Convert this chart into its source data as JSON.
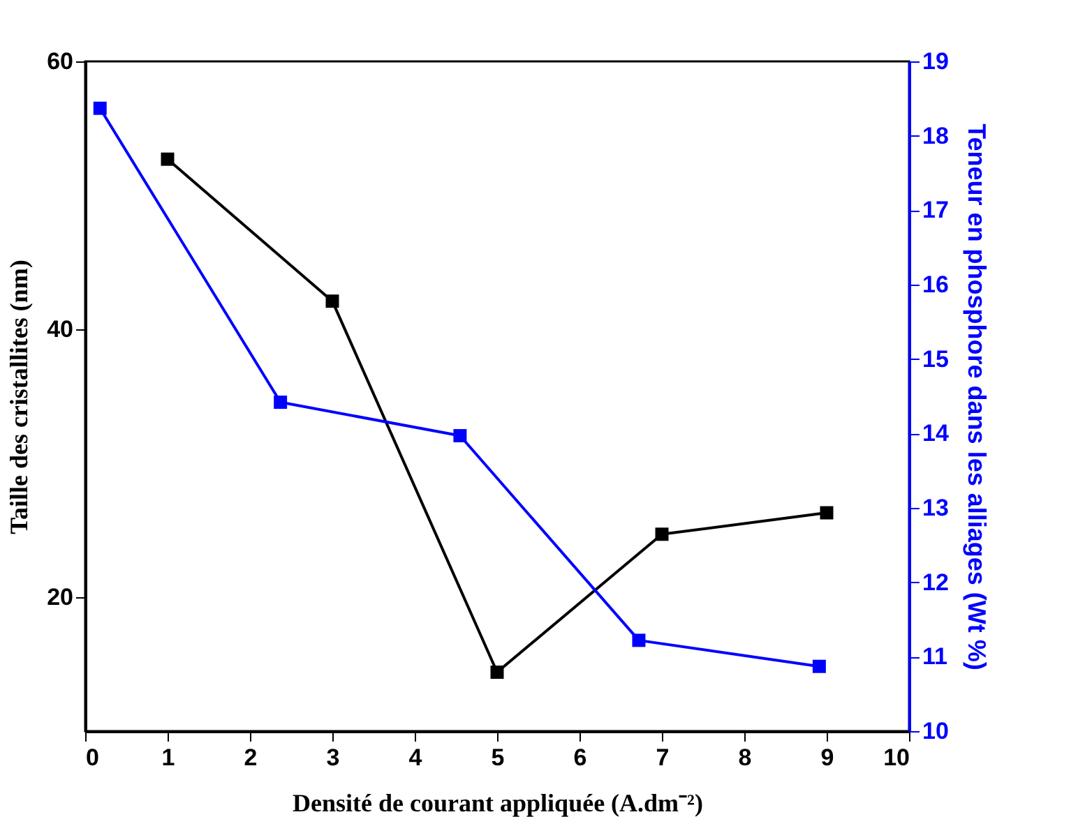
{
  "chart_data": {
    "type": "line",
    "xlabel": "Densité de courant appliquée   (A.dm⁻²)",
    "ylabel": "Taille des cristallites (nm)",
    "y2label": "Teneur en phosphore dans les alliages  (Wt %)",
    "xlim": [
      0,
      10
    ],
    "xticks": [
      0,
      1,
      2,
      3,
      4,
      5,
      6,
      7,
      8,
      9,
      10
    ],
    "ylim": [
      10,
      60
    ],
    "yticks": [
      20,
      40,
      60
    ],
    "y2lim": [
      10,
      19
    ],
    "y2ticks": [
      10,
      11,
      12,
      13,
      14,
      15,
      16,
      17,
      18,
      19
    ],
    "marker": "square",
    "grid": false,
    "series": [
      {
        "color": "#000000",
        "x": [
          1,
          3,
          5,
          7,
          9
        ],
        "values": [
          52.7,
          42.1,
          14.4,
          24.7,
          26.3
        ]
      },
      {
        "color": "#0000ff",
        "axis": "y2",
        "x": [
          0.18,
          2.37,
          4.55,
          6.72,
          8.91
        ],
        "values": [
          18.37,
          14.42,
          13.97,
          11.22,
          10.87
        ]
      }
    ]
  }
}
